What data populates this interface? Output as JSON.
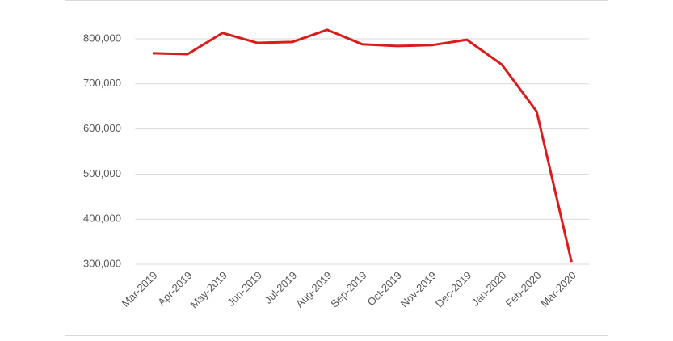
{
  "chart_data": {
    "type": "line",
    "categories": [
      "Mar-2019",
      "Apr-2019",
      "May-2019",
      "Jun-2019",
      "Jul-2019",
      "Aug-2019",
      "Sep-2019",
      "Oct-2019",
      "Nov-2019",
      "Dec-2019",
      "Jan-2020",
      "Feb-2020",
      "Mar-2020"
    ],
    "values": [
      768000,
      766000,
      813000,
      791000,
      793000,
      820000,
      788000,
      784000,
      786000,
      798000,
      743000,
      639000,
      305000
    ],
    "color": "#d91c1c",
    "ylim": [
      300000,
      800000
    ],
    "yticks": [
      {
        "value": 300000,
        "label": "300,000"
      },
      {
        "value": 400000,
        "label": "400,000"
      },
      {
        "value": 500000,
        "label": "500,000"
      },
      {
        "value": 600000,
        "label": "600,000"
      },
      {
        "value": 700000,
        "label": "700,000"
      },
      {
        "value": 800000,
        "label": "800,000"
      }
    ],
    "grid": true
  }
}
